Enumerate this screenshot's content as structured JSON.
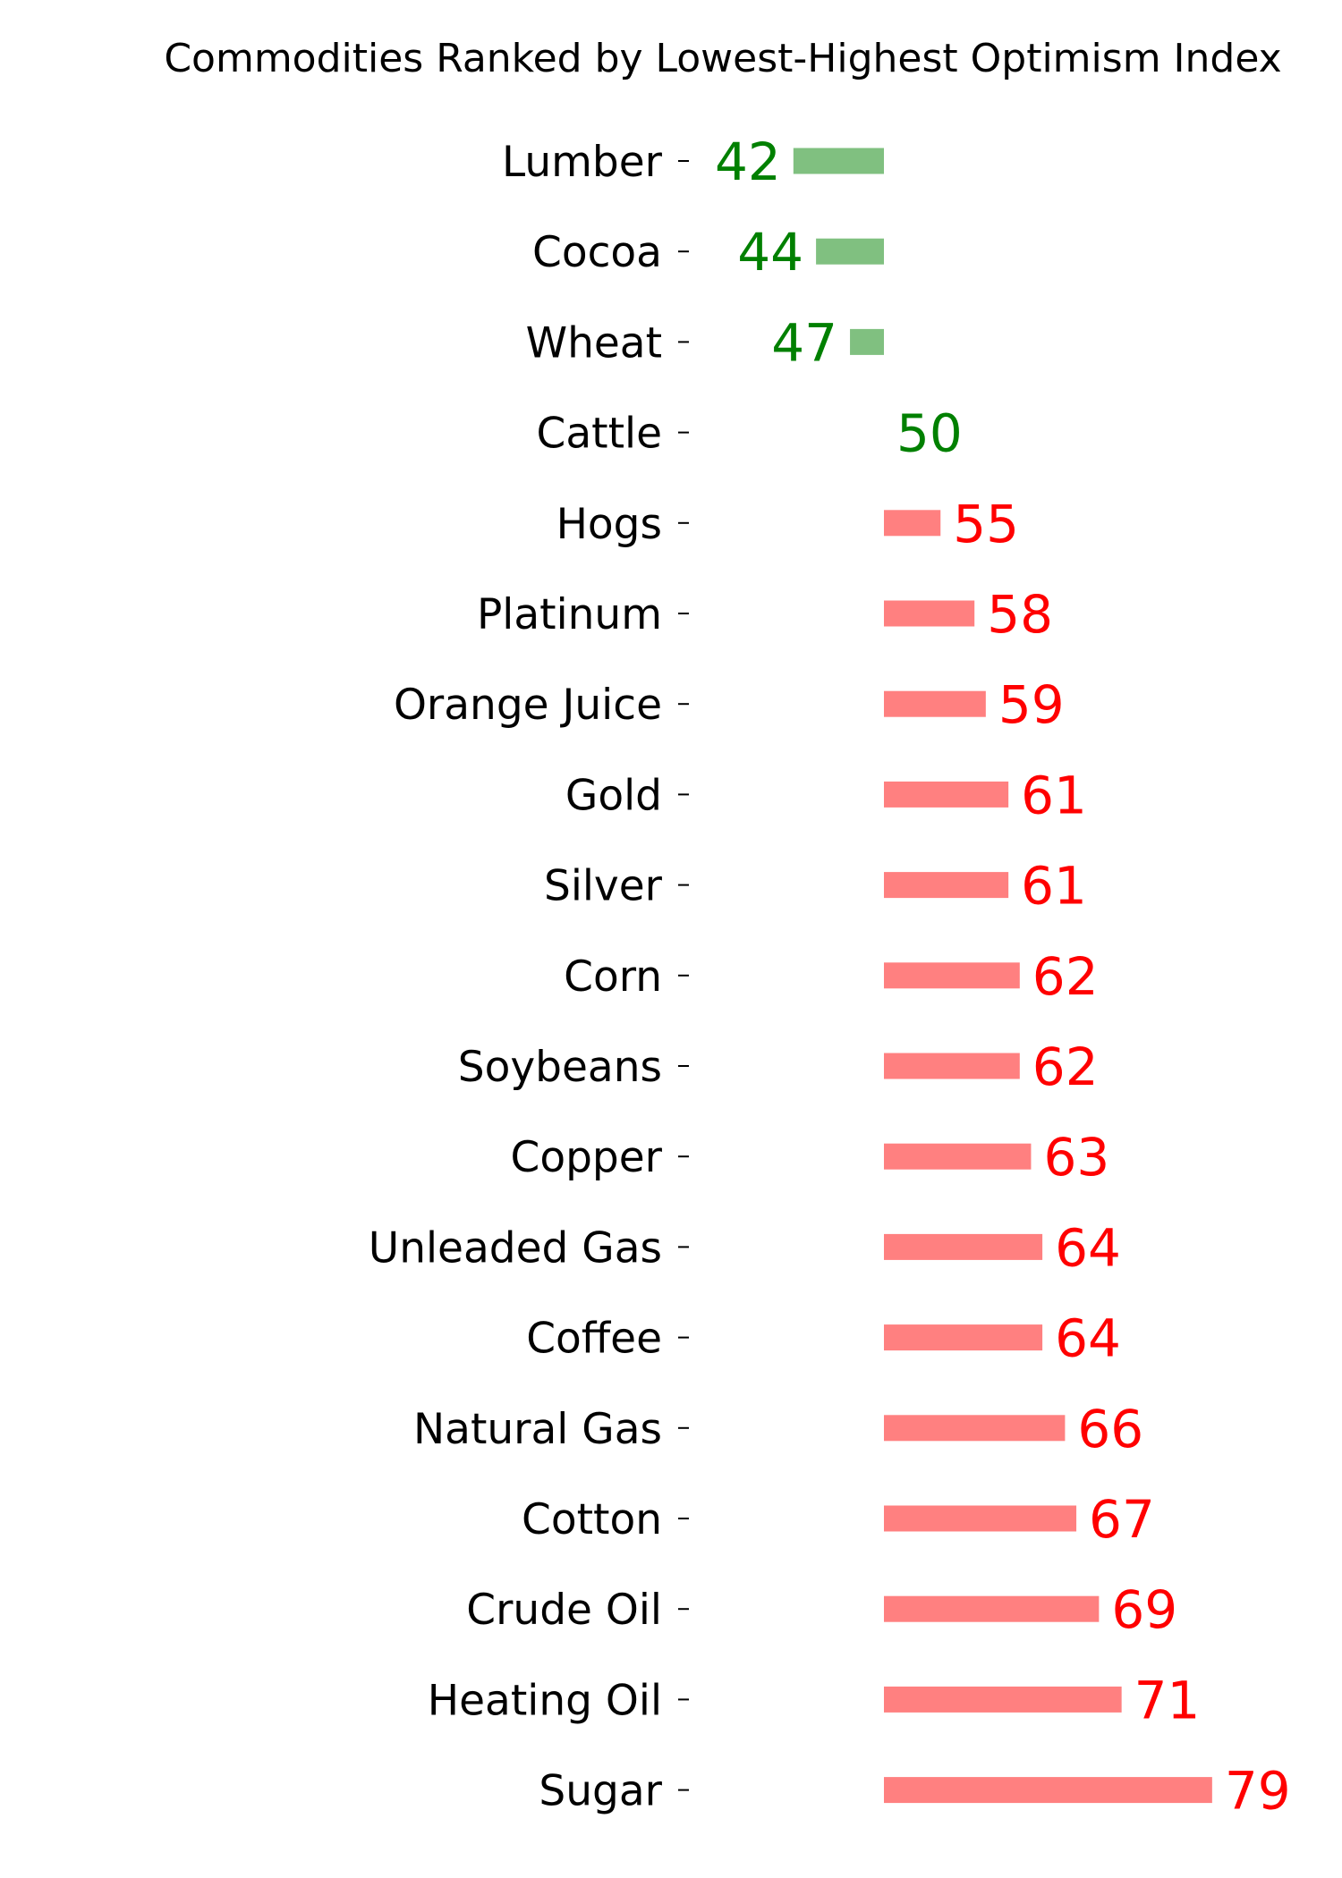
{
  "chart_data": {
    "type": "bar",
    "orientation": "horizontal",
    "title": "Commodities Ranked by Lowest-Highest Optimism Index",
    "baseline": 50,
    "categories": [
      "Lumber",
      "Cocoa",
      "Wheat",
      "Cattle",
      "Hogs",
      "Platinum",
      "Orange Juice",
      "Gold",
      "Silver",
      "Corn",
      "Soybeans",
      "Copper",
      "Unleaded Gas",
      "Coffee",
      "Natural Gas",
      "Cotton",
      "Crude Oil",
      "Heating Oil",
      "Sugar"
    ],
    "values": [
      42,
      44,
      47,
      50,
      55,
      58,
      59,
      61,
      61,
      62,
      62,
      63,
      64,
      64,
      66,
      67,
      69,
      71,
      79
    ],
    "colors": {
      "below_or_equal_baseline_bar": "#80c080",
      "above_baseline_bar": "#ff8080",
      "below_or_equal_baseline_text": "#008000",
      "above_baseline_text": "#ff0000"
    },
    "grid": false,
    "xaxis_visible": false
  }
}
